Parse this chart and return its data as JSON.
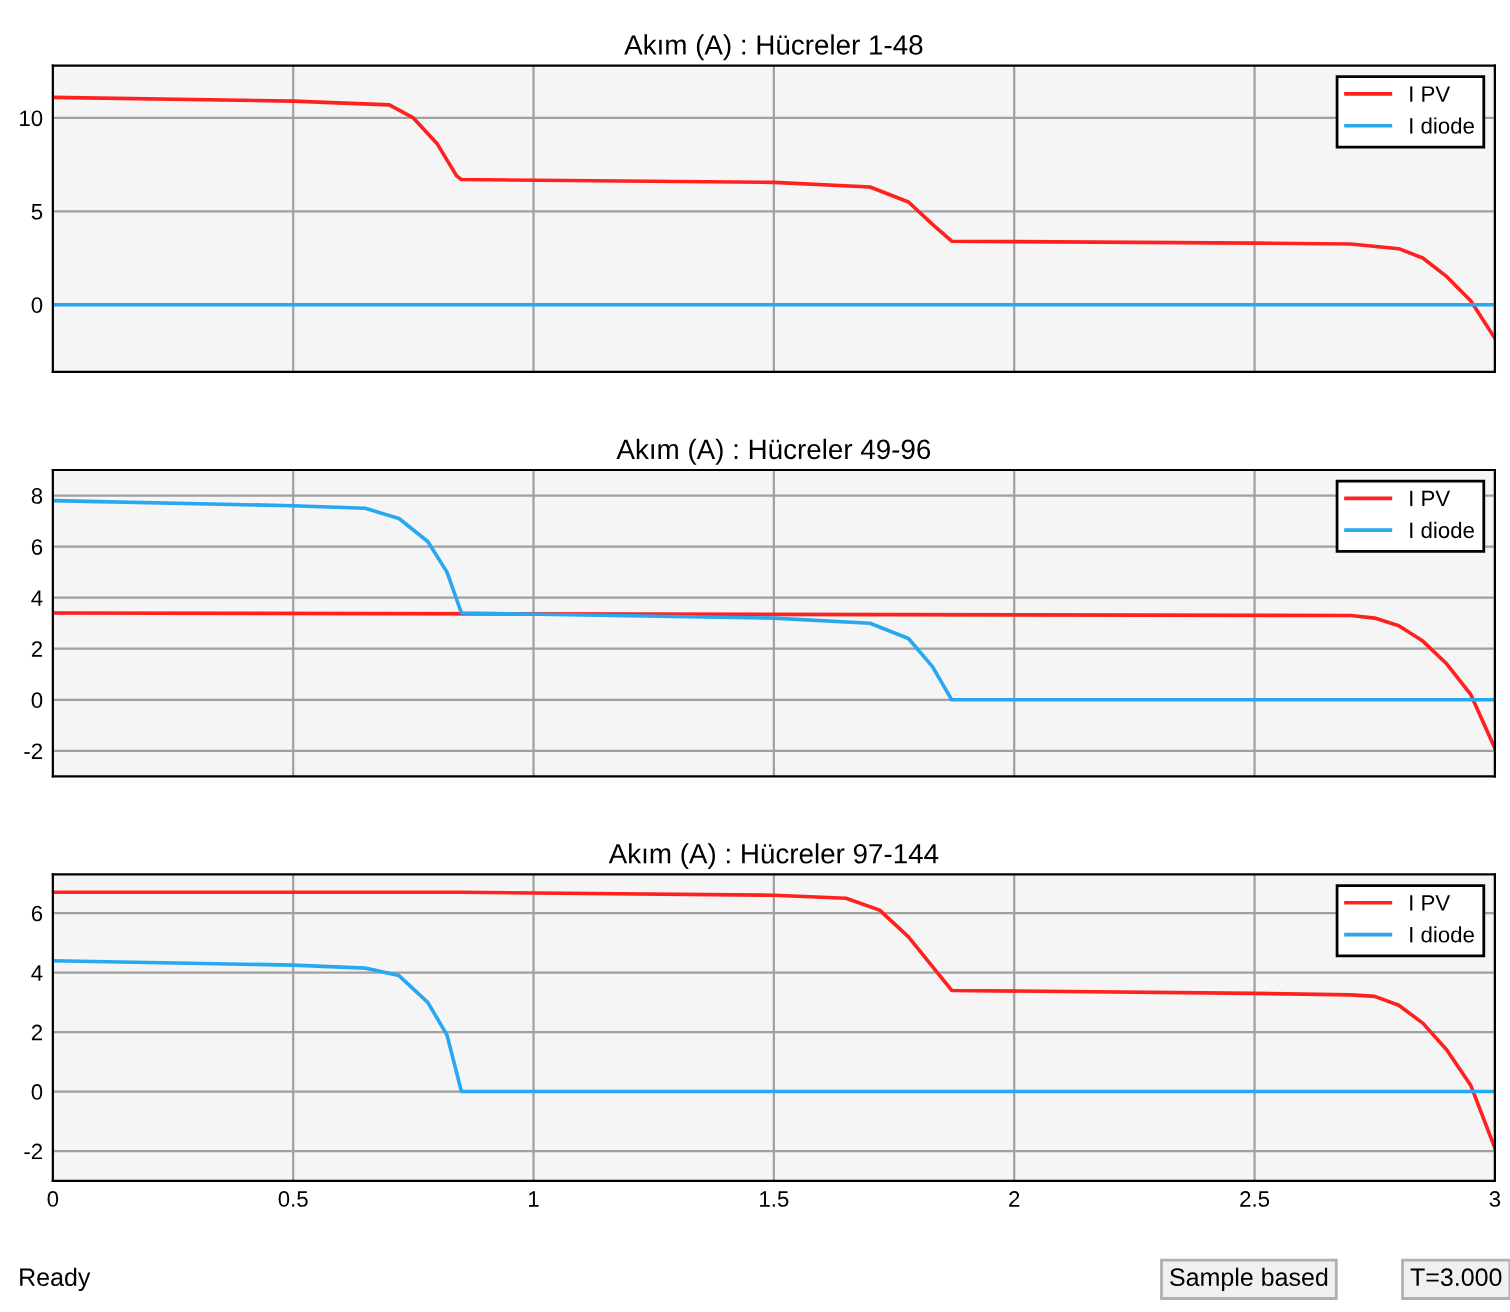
{
  "chart_data": [
    {
      "type": "line",
      "title": "Akım (A) : Hücreler 1-48",
      "xlim": [
        0,
        3
      ],
      "xticks": [
        0,
        0.5,
        1,
        1.5,
        2,
        2.5,
        3
      ],
      "ylim": [
        -3.6,
        12.8
      ],
      "yticks": [
        0,
        5,
        10
      ],
      "grid": true,
      "legend": "top right",
      "tick_labels": "y",
      "series": [
        {
          "name": "I PV",
          "color": "#ff2020",
          "x": [
            0,
            0.5,
            0.7,
            0.75,
            0.8,
            0.84,
            0.85,
            1.5,
            1.7,
            1.78,
            1.83,
            1.87,
            2.5,
            2.7,
            2.8,
            2.85,
            2.9,
            2.95,
            3.0
          ],
          "values": [
            11.1,
            10.9,
            10.7,
            10.0,
            8.6,
            6.9,
            6.7,
            6.55,
            6.3,
            5.5,
            4.3,
            3.4,
            3.3,
            3.25,
            3.0,
            2.5,
            1.5,
            0.2,
            -1.8
          ]
        },
        {
          "name": "I diode",
          "color": "#28a8f0",
          "x": [
            0,
            3
          ],
          "values": [
            0,
            0
          ]
        }
      ]
    },
    {
      "type": "line",
      "title": "Akım (A) : Hücreler 49-96",
      "xlim": [
        0,
        3
      ],
      "xticks": [
        0,
        0.5,
        1,
        1.5,
        2,
        2.5,
        3
      ],
      "ylim": [
        -3,
        9
      ],
      "yticks": [
        -2,
        0,
        2,
        4,
        6,
        8
      ],
      "grid": true,
      "legend": "top right",
      "tick_labels": "y",
      "series": [
        {
          "name": "I PV",
          "color": "#ff2020",
          "x": [
            0,
            2.7,
            2.75,
            2.8,
            2.85,
            2.9,
            2.95,
            3.0
          ],
          "values": [
            3.4,
            3.3,
            3.2,
            2.9,
            2.3,
            1.4,
            0.2,
            -1.9
          ]
        },
        {
          "name": "I diode",
          "color": "#28a8f0",
          "x": [
            0,
            0.5,
            0.65,
            0.72,
            0.78,
            0.82,
            0.85,
            1.5,
            1.7,
            1.78,
            1.83,
            1.87,
            3.0
          ],
          "values": [
            7.8,
            7.6,
            7.5,
            7.1,
            6.2,
            5.0,
            3.4,
            3.2,
            3.0,
            2.4,
            1.3,
            0,
            0
          ]
        }
      ]
    },
    {
      "type": "line",
      "title": "Akım (A) : Hücreler 97-144",
      "xlim": [
        0,
        3
      ],
      "xticks": [
        0,
        0.5,
        1,
        1.5,
        2,
        2.5,
        3
      ],
      "ylim": [
        -3,
        7.3
      ],
      "yticks": [
        -2,
        0,
        2,
        4,
        6
      ],
      "grid": true,
      "legend": "top right",
      "annotations": [
        "Ready",
        "Sample based",
        "T=3.000"
      ],
      "series": [
        {
          "name": "I PV",
          "color": "#ff2020",
          "x": [
            0,
            0.85,
            1.5,
            1.65,
            1.72,
            1.78,
            1.83,
            1.87,
            2.5,
            2.7,
            2.75,
            2.8,
            2.85,
            2.9,
            2.95,
            3.0
          ],
          "values": [
            6.7,
            6.7,
            6.6,
            6.5,
            6.1,
            5.2,
            4.2,
            3.4,
            3.3,
            3.25,
            3.2,
            2.9,
            2.3,
            1.4,
            0.2,
            -1.9
          ]
        },
        {
          "name": "I diode",
          "color": "#28a8f0",
          "x": [
            0,
            0.5,
            0.65,
            0.72,
            0.78,
            0.82,
            0.85,
            3.0
          ],
          "values": [
            4.4,
            4.25,
            4.15,
            3.9,
            3.0,
            1.9,
            0,
            0
          ]
        }
      ]
    }
  ]
}
